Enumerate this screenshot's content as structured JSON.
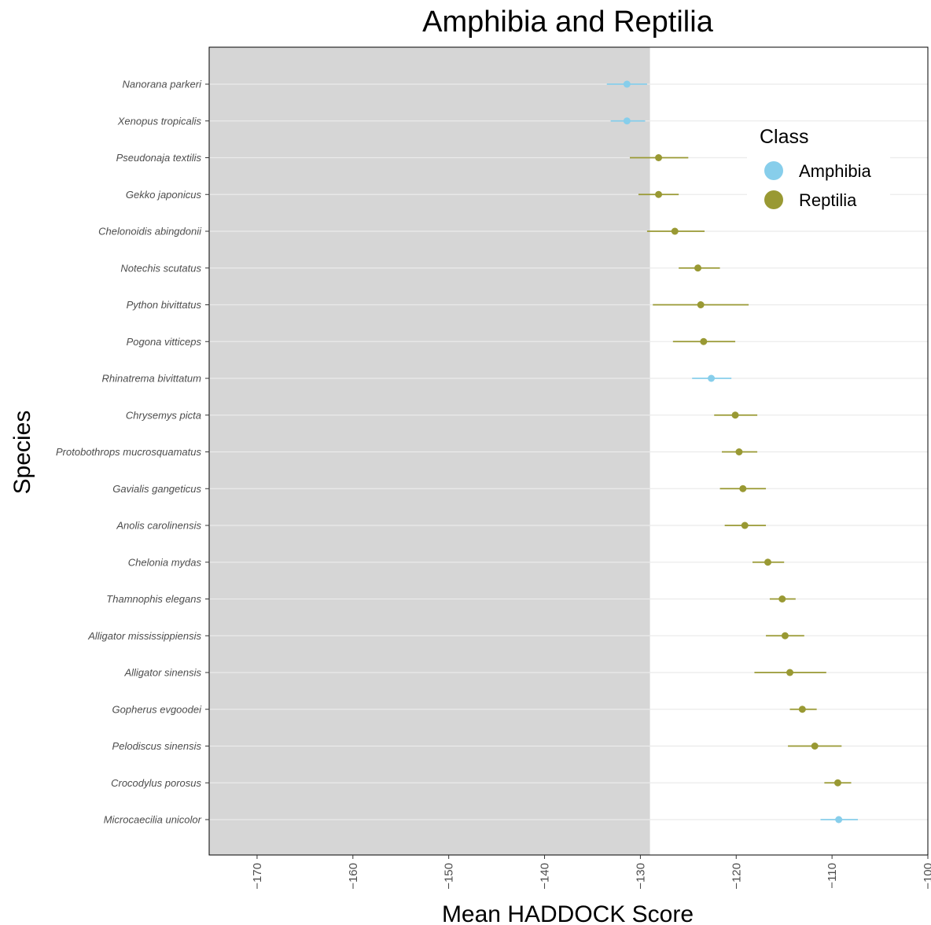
{
  "chart_data": {
    "type": "scatter",
    "title": "Amphibia and Reptilia",
    "xlabel": "Mean HADDOCK Score",
    "ylabel": "Species",
    "xlim": [
      -175,
      -100
    ],
    "xticks": [
      -170,
      -160,
      -150,
      -140,
      -130,
      -120,
      -110,
      -100
    ],
    "shaded_region": {
      "from": -175,
      "to": -129
    },
    "grid": true,
    "legend": {
      "title": "Class",
      "position": "top-right",
      "entries": [
        {
          "name": "Amphibia",
          "color": "#87CEEB"
        },
        {
          "name": "Reptilia",
          "color": "#999933"
        }
      ]
    },
    "points": [
      {
        "species": "Nanorana parkeri",
        "class": "Amphibia",
        "mean": -131.4,
        "lo": -133.5,
        "hi": -129.3
      },
      {
        "species": "Xenopus tropicalis",
        "class": "Amphibia",
        "mean": -131.4,
        "lo": -133.1,
        "hi": -129.5
      },
      {
        "species": "Pseudonaja textilis",
        "class": "Reptilia",
        "mean": -128.1,
        "lo": -131.1,
        "hi": -125.0
      },
      {
        "species": "Gekko japonicus",
        "class": "Reptilia",
        "mean": -128.1,
        "lo": -130.2,
        "hi": -126.0
      },
      {
        "species": "Chelonoidis abingdonii",
        "class": "Reptilia",
        "mean": -126.4,
        "lo": -129.3,
        "hi": -123.3
      },
      {
        "species": "Notechis scutatus",
        "class": "Reptilia",
        "mean": -124.0,
        "lo": -126.0,
        "hi": -121.7
      },
      {
        "species": "Python bivittatus",
        "class": "Reptilia",
        "mean": -123.7,
        "lo": -128.7,
        "hi": -118.7
      },
      {
        "species": "Pogona vitticeps",
        "class": "Reptilia",
        "mean": -123.4,
        "lo": -126.6,
        "hi": -120.1
      },
      {
        "species": "Rhinatrema bivittatum",
        "class": "Amphibia",
        "mean": -122.6,
        "lo": -124.6,
        "hi": -120.5
      },
      {
        "species": "Chrysemys picta",
        "class": "Reptilia",
        "mean": -120.1,
        "lo": -122.3,
        "hi": -117.8
      },
      {
        "species": "Protobothrops mucrosquamatus",
        "class": "Reptilia",
        "mean": -119.7,
        "lo": -121.5,
        "hi": -117.8
      },
      {
        "species": "Gavialis gangeticus",
        "class": "Reptilia",
        "mean": -119.3,
        "lo": -121.7,
        "hi": -116.9
      },
      {
        "species": "Anolis carolinensis",
        "class": "Reptilia",
        "mean": -119.1,
        "lo": -121.2,
        "hi": -116.9
      },
      {
        "species": "Chelonia mydas",
        "class": "Reptilia",
        "mean": -116.7,
        "lo": -118.3,
        "hi": -115.0
      },
      {
        "species": "Thamnophis elegans",
        "class": "Reptilia",
        "mean": -115.2,
        "lo": -116.5,
        "hi": -113.8
      },
      {
        "species": "Alligator mississippiensis",
        "class": "Reptilia",
        "mean": -114.9,
        "lo": -116.9,
        "hi": -112.9
      },
      {
        "species": "Alligator sinensis",
        "class": "Reptilia",
        "mean": -114.4,
        "lo": -118.1,
        "hi": -110.6
      },
      {
        "species": "Gopherus evgoodei",
        "class": "Reptilia",
        "mean": -113.1,
        "lo": -114.4,
        "hi": -111.6
      },
      {
        "species": "Pelodiscus sinensis",
        "class": "Reptilia",
        "mean": -111.8,
        "lo": -114.6,
        "hi": -109.0
      },
      {
        "species": "Crocodylus porosus",
        "class": "Reptilia",
        "mean": -109.4,
        "lo": -110.8,
        "hi": -108.0
      },
      {
        "species": "Microcaecilia unicolor",
        "class": "Amphibia",
        "mean": -109.3,
        "lo": -111.2,
        "hi": -107.3
      }
    ]
  }
}
